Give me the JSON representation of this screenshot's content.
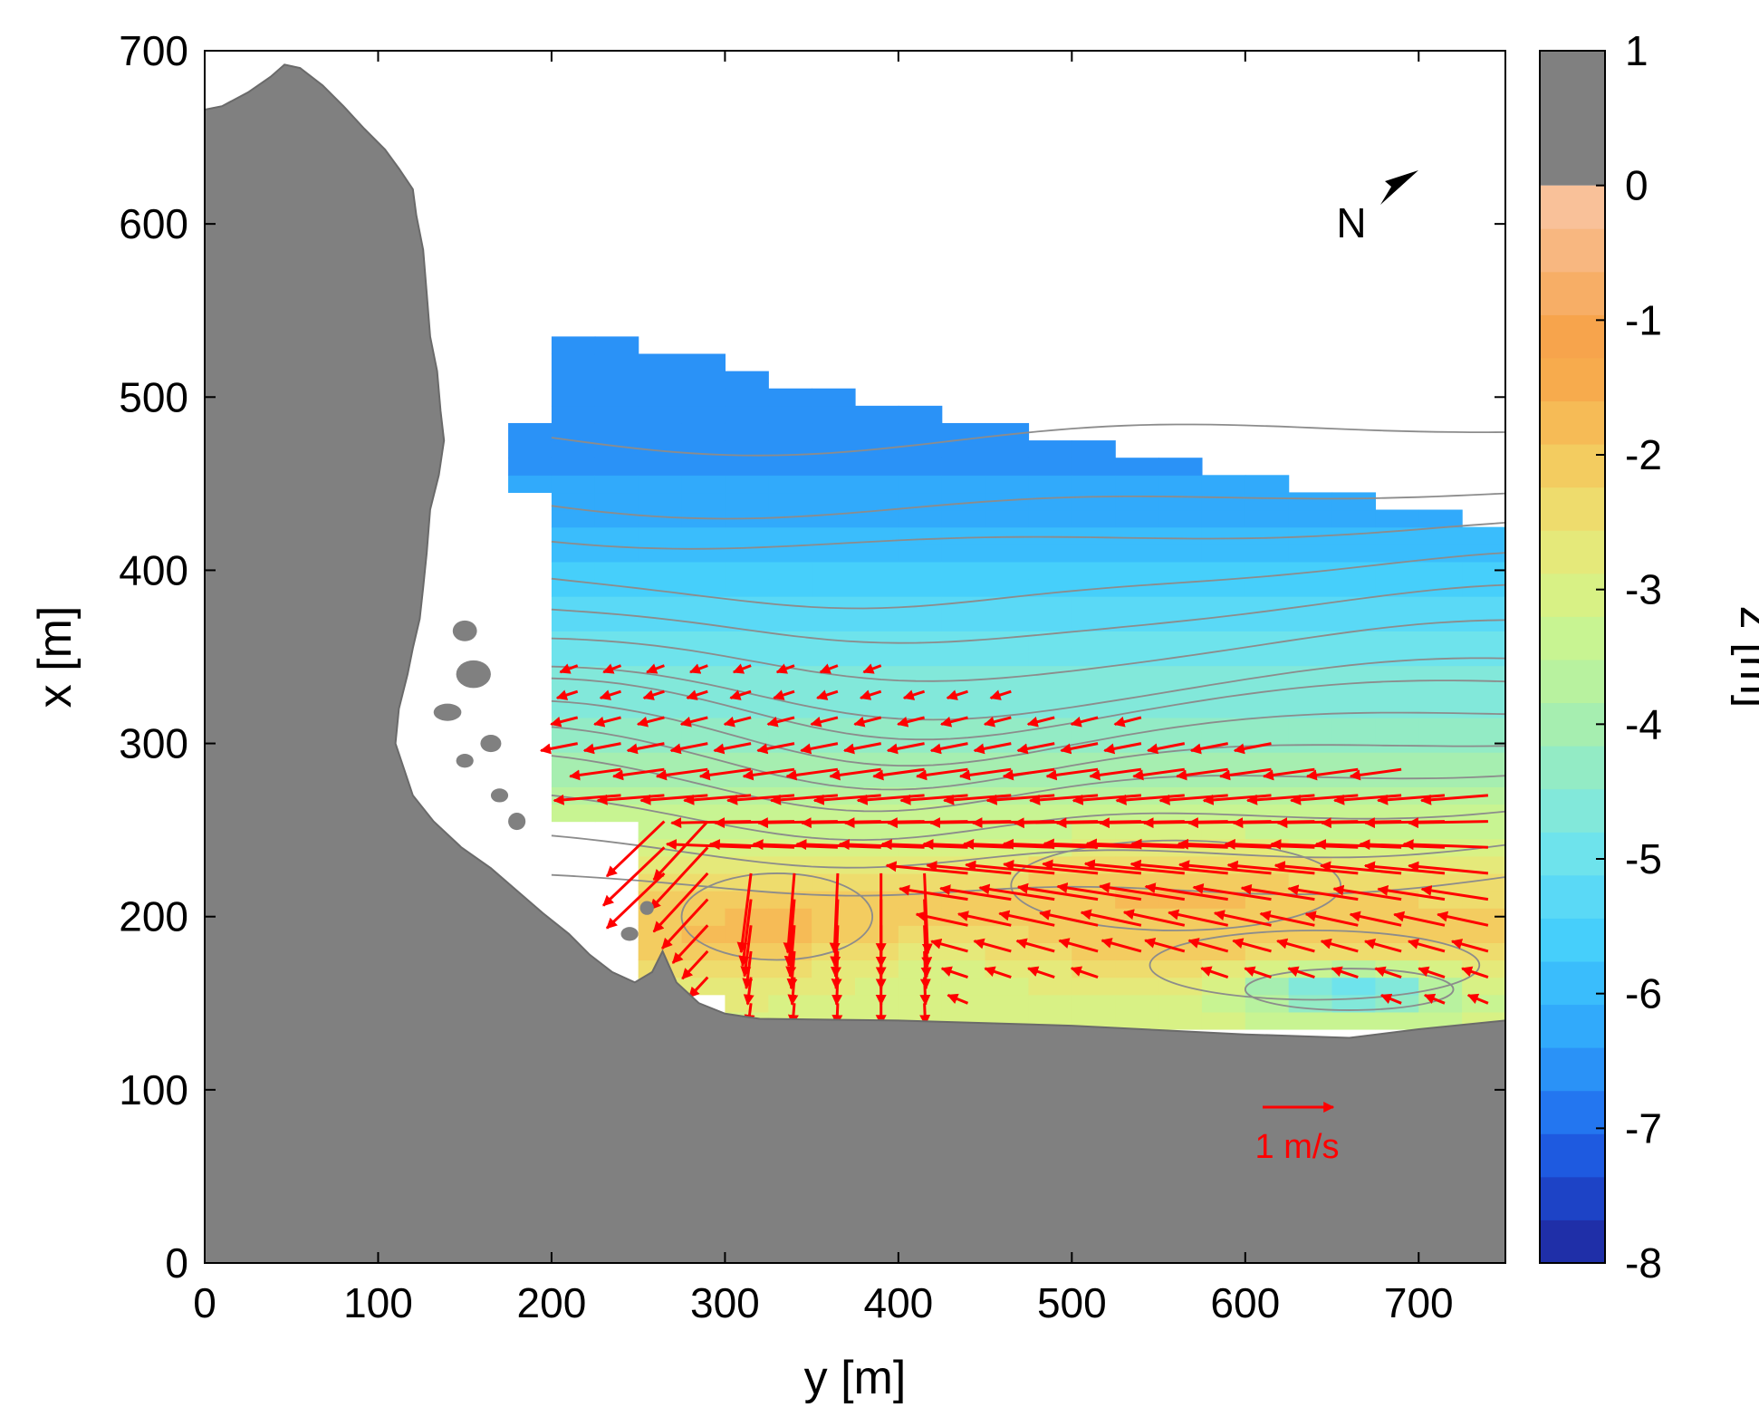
{
  "chart_data": {
    "type": "heatmap",
    "xlabel": "y [m]",
    "ylabel": "x [m]",
    "colorbar_label": "z [m]",
    "xlim": [
      0,
      750
    ],
    "ylim": [
      0,
      700
    ],
    "xticks": [
      0,
      100,
      200,
      300,
      400,
      500,
      600,
      700
    ],
    "yticks": [
      0,
      100,
      200,
      300,
      400,
      500,
      600,
      700
    ],
    "clim": [
      -8,
      1
    ],
    "cticks": [
      1,
      0,
      -1,
      -2,
      -3,
      -4,
      -5,
      -6,
      -7,
      -8
    ],
    "land_color": "#808080",
    "vector_color": "#ff0000",
    "contour_color": "#8c8c8c",
    "north_label": "N",
    "scale_arrow": {
      "label": "1 m/s",
      "y": 615,
      "x": 90,
      "length_m_per_s": 1
    },
    "colormap": [
      "#1f2fa8",
      "#1d43c6",
      "#1e5ae0",
      "#2376f0",
      "#2a92f7",
      "#31aafb",
      "#3abdfc",
      "#46cffb",
      "#5ad9f6",
      "#6ee3ec",
      "#82e8da",
      "#93ebc5",
      "#a6eeb0",
      "#b8f29f",
      "#c8f492",
      "#d8f185",
      "#e5e97a",
      "#eedc6d",
      "#f3cc60",
      "#f6bb56",
      "#f7ab4d",
      "#f7a44c",
      "#f7ae66",
      "#f8b780",
      "#f9c199"
    ],
    "bathymetry_depth_profile": [
      {
        "x": 540,
        "z": -6.2
      },
      {
        "x": 500,
        "z": -6.5
      },
      {
        "x": 460,
        "z": -6.3
      },
      {
        "x": 430,
        "z": -5.9
      },
      {
        "x": 400,
        "z": -5.3
      },
      {
        "x": 370,
        "z": -4.9
      },
      {
        "x": 340,
        "z": -4.4
      },
      {
        "x": 310,
        "z": -3.9
      },
      {
        "x": 280,
        "z": -3.4
      },
      {
        "x": 250,
        "z": -2.7
      },
      {
        "x": 215,
        "z": -1.6
      },
      {
        "x": 185,
        "z": -1.4
      },
      {
        "x": 160,
        "z": -2.0
      },
      {
        "x": 145,
        "z": -2.4
      }
    ]
  }
}
